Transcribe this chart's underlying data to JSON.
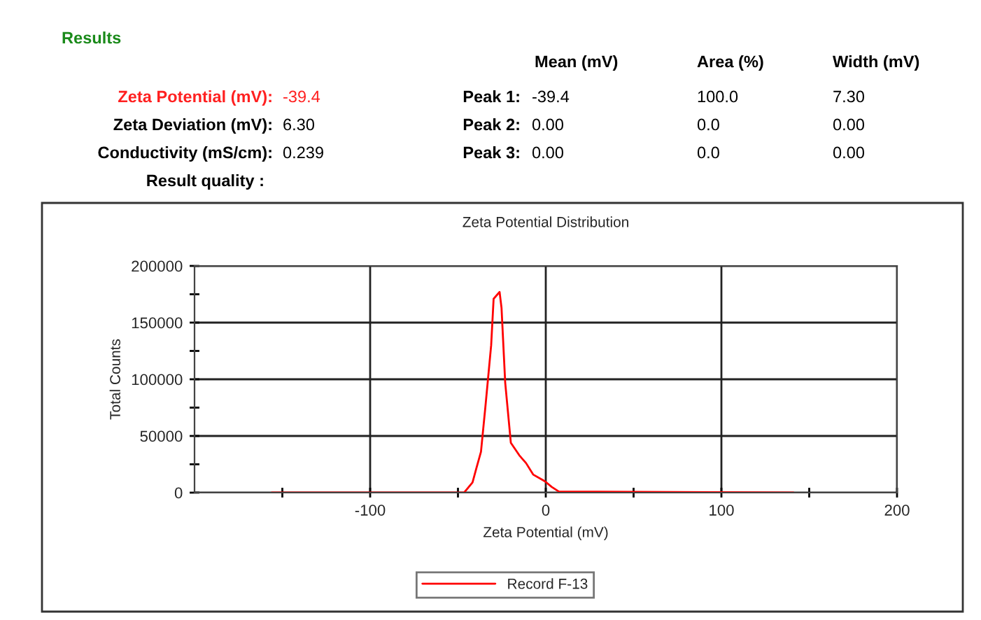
{
  "chart_data": {
    "type": "line",
    "title": "Zeta Potential Distribution",
    "xlabel": "Zeta Potential (mV)",
    "ylabel": "Total Counts",
    "annotations": [
      "Results",
      "Mean (mV)",
      "Area (%)",
      "Width (mV)",
      "Zeta Potential (mV):",
      "-39.4",
      "Zeta Deviation (mV):",
      "6.30",
      "Conductivity (mS/cm):",
      "0.239",
      "Result quality :",
      "Peak 1:",
      "-39.4",
      "100.0",
      "7.30",
      "Peak 2:",
      "0.00",
      "0.0",
      "0.00",
      "Peak 3:",
      "0.00",
      "0.0",
      "0.00"
    ],
    "series": [
      {
        "name": "Record F-13",
        "color": "#ff0000",
        "x": [
          -156,
          -46.5,
          -41.7,
          -39.6,
          -36.9,
          -34.3,
          -31.1,
          -29.7,
          -26.3,
          -25.2,
          -23.1,
          -19.9,
          -15.1,
          -11.2,
          -7.2,
          -0.5,
          3.4,
          7.4,
          141
        ],
        "values": [
          0,
          0,
          9000,
          21000,
          36000,
          77000,
          130000,
          171000,
          177000,
          163000,
          97000,
          44000,
          33000,
          26000,
          16000,
          10000,
          5000,
          1000,
          0
        ]
      }
    ],
    "xlim": [
      -200,
      200
    ],
    "xticks": [
      {
        "value": -150,
        "label": null
      },
      -100,
      {
        "value": -50,
        "label": null
      },
      0,
      {
        "value": 50,
        "label": null
      },
      100,
      {
        "value": 150,
        "label": null
      },
      200
    ],
    "ylim": [
      0,
      200000
    ],
    "yticks": [
      0,
      {
        "value": 25000,
        "label": null
      },
      50000,
      {
        "value": 75000,
        "label": null
      },
      100000,
      {
        "value": 125000,
        "label": null
      },
      150000,
      {
        "value": 175000,
        "label": null
      },
      200000
    ],
    "grid": true,
    "legend": "bottom",
    "marker": "none",
    "line_style": "solid"
  }
}
